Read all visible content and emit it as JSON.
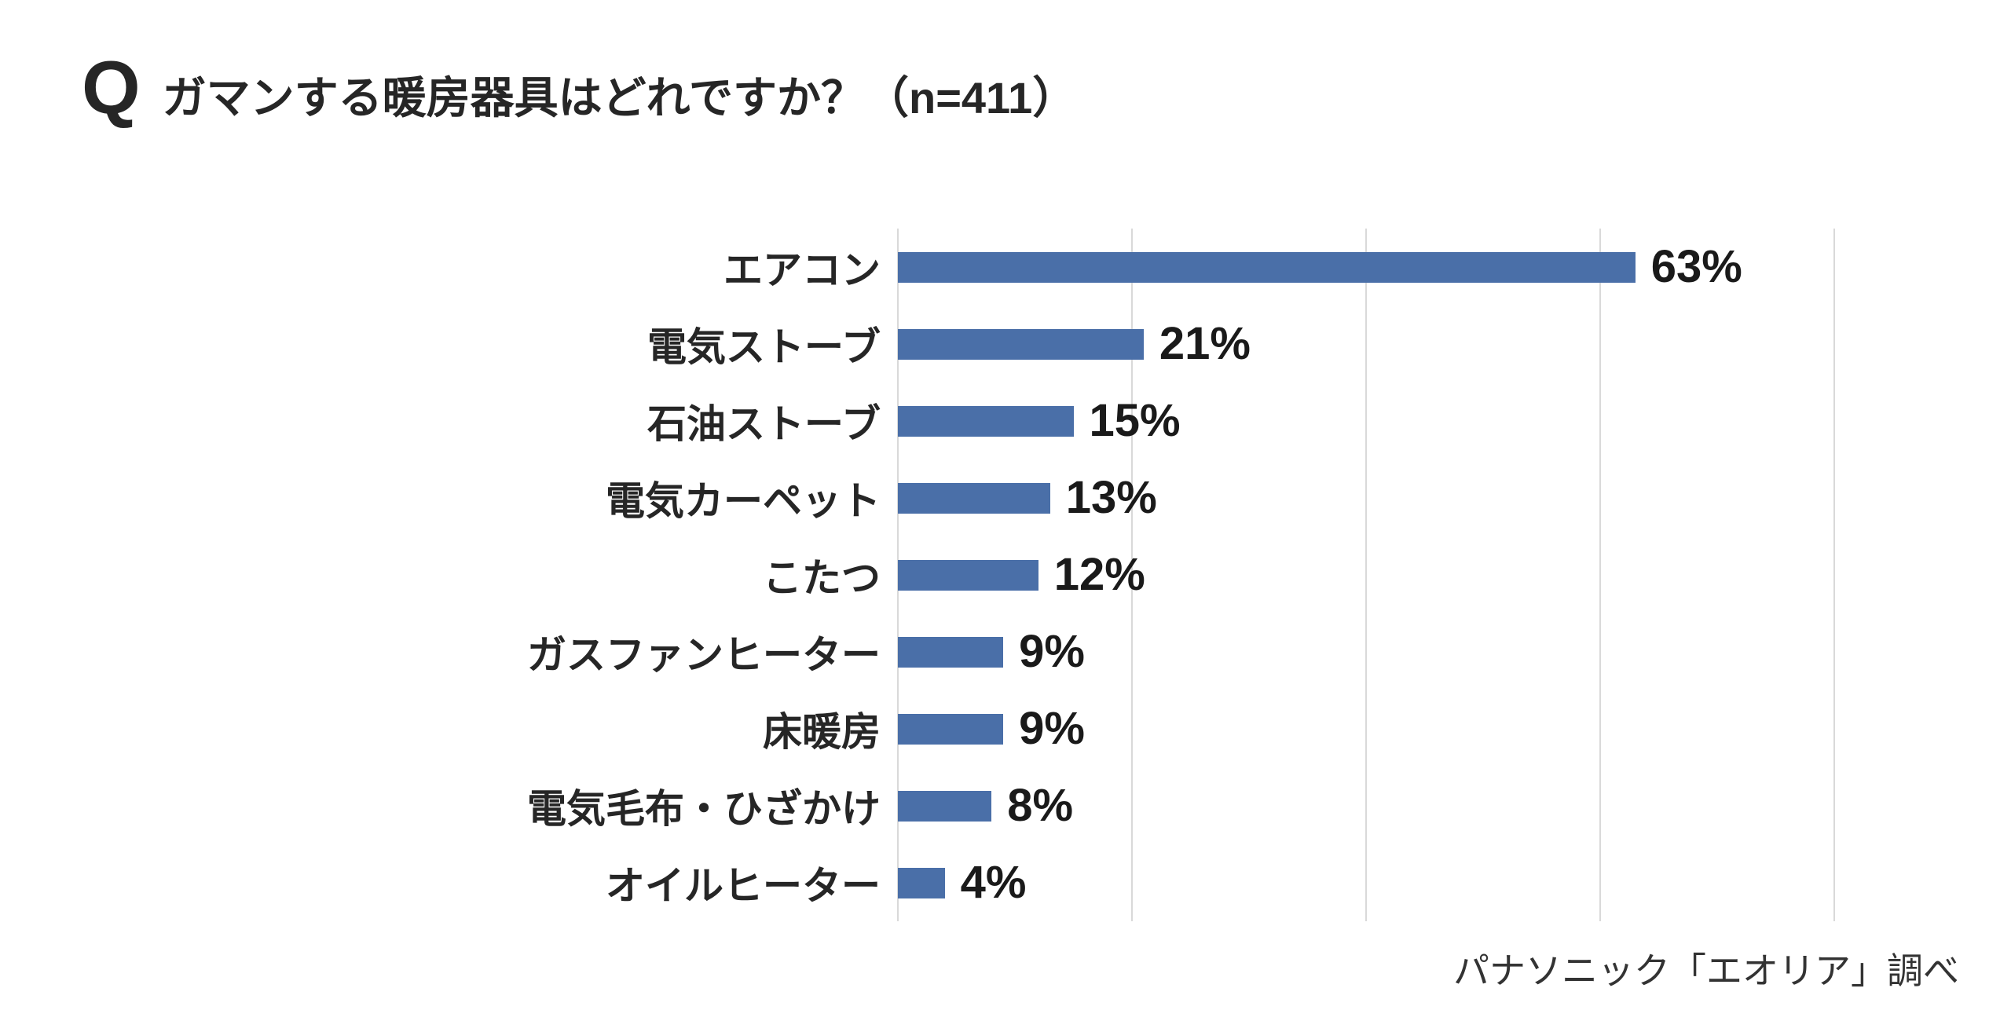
{
  "header": {
    "q_mark": "Q",
    "title": "ガマンする暖房器具はどれですか？（n=411）"
  },
  "chart_data": {
    "type": "bar",
    "orientation": "horizontal",
    "title": "ガマンする暖房器具はどれですか？（n=411）",
    "sample_size": "n=411",
    "categories": [
      "エアコン",
      "電気ストーブ",
      "石油ストーブ",
      "電気カーペット",
      "こたつ",
      "ガスファンヒーター",
      "床暖房",
      "電気毛布・ひざかけ",
      "オイルヒーター"
    ],
    "values": [
      63,
      21,
      15,
      13,
      12,
      9,
      9,
      8,
      4
    ],
    "value_labels": [
      "63%",
      "21%",
      "15%",
      "13%",
      "12%",
      "9%",
      "9%",
      "8%",
      "4%"
    ],
    "xlabel": "",
    "ylabel": "",
    "xlim": [
      0,
      80
    ],
    "gridline_interval": 20,
    "grid": true,
    "legend": false,
    "bar_color": "#4a6fa8",
    "grid_color": "#d9d9d9"
  },
  "footer": {
    "source": "パナソニック「エオリア」調べ"
  },
  "colors": {
    "bar": "#4a6fa8",
    "grid": "#d9d9d9",
    "text": "#262626",
    "background": "#ffffff"
  }
}
